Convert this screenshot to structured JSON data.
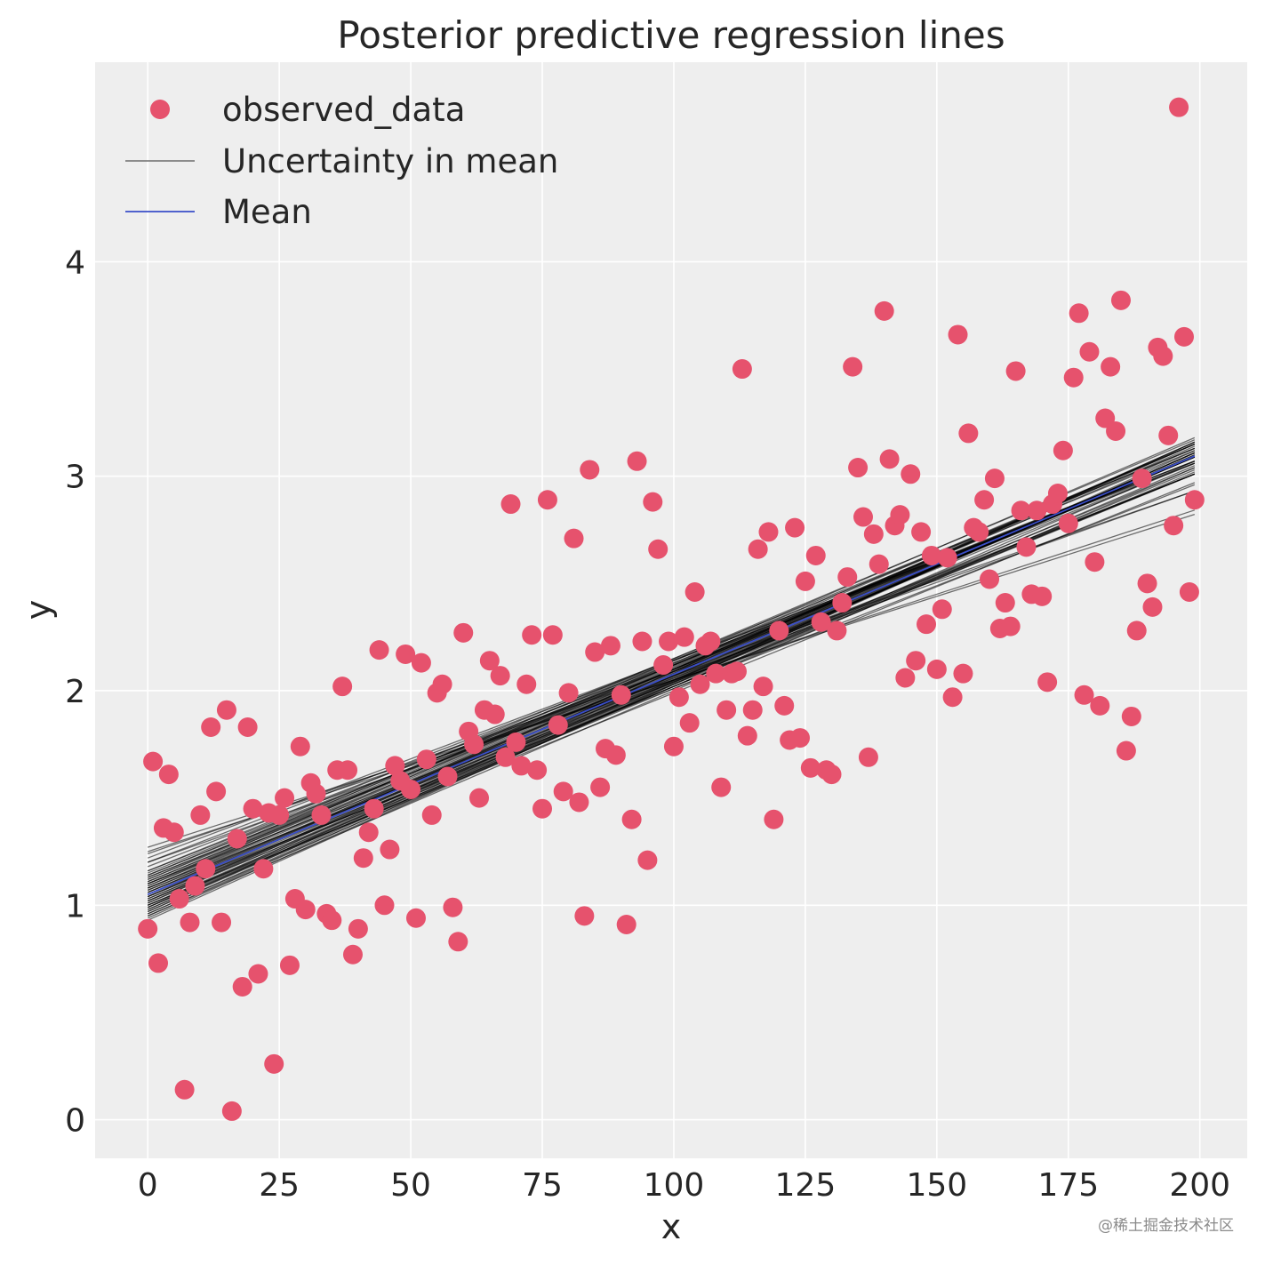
{
  "chart_data": {
    "type": "scatter",
    "title": "Posterior predictive regression lines",
    "xlabel": "x",
    "ylabel": "y",
    "xlim": [
      -10,
      209
    ],
    "ylim": [
      -0.18,
      4.93
    ],
    "xticks": [
      0,
      25,
      50,
      75,
      100,
      125,
      150,
      175,
      200
    ],
    "yticks": [
      0,
      1,
      2,
      3,
      4
    ],
    "grid": true,
    "legend_position": "top-left",
    "legend": [
      {
        "label": "observed_data",
        "kind": "marker"
      },
      {
        "label": "Uncertainty in mean",
        "kind": "line"
      },
      {
        "label": "Mean",
        "kind": "line"
      }
    ],
    "colors": {
      "background": "#eeeeee",
      "grid": "#ffffff",
      "points": "#e6526d",
      "uncertainty_lines": "#000000",
      "mean_line": "#3a4ec8",
      "text": "#262626"
    },
    "mean_line": {
      "intercept": 1.05,
      "slope": 0.01027,
      "x_range": [
        0,
        199
      ]
    },
    "uncertainty_lines": [
      [
        1.0,
        0.0105
      ],
      [
        1.02,
        0.0104
      ],
      [
        1.04,
        0.0103
      ],
      [
        1.06,
        0.0102
      ],
      [
        1.08,
        0.0101
      ],
      [
        1.1,
        0.01
      ],
      [
        1.12,
        0.0099
      ],
      [
        1.14,
        0.0098
      ],
      [
        0.98,
        0.01065
      ],
      [
        0.97,
        0.01075
      ],
      [
        0.99,
        0.0106
      ],
      [
        1.01,
        0.01045
      ],
      [
        1.03,
        0.01035
      ],
      [
        1.05,
        0.01025
      ],
      [
        1.07,
        0.01015
      ],
      [
        1.09,
        0.01005
      ],
      [
        1.11,
        0.00995
      ],
      [
        1.13,
        0.00985
      ],
      [
        1.15,
        0.00975
      ],
      [
        0.96,
        0.0108
      ],
      [
        0.95,
        0.01085
      ],
      [
        0.94,
        0.0109
      ],
      [
        1.16,
        0.0096
      ],
      [
        1.18,
        0.0095
      ],
      [
        1.2,
        0.0094
      ],
      [
        1.22,
        0.00925
      ],
      [
        1.25,
        0.008
      ],
      [
        1.27,
        0.0078
      ],
      [
        1.24,
        0.0085
      ],
      [
        1.2,
        0.0087
      ],
      [
        1.02,
        0.01
      ],
      [
        1.06,
        0.0098
      ],
      [
        1.0,
        0.0102
      ],
      [
        1.1,
        0.0096
      ],
      [
        1.04,
        0.0106
      ],
      [
        1.08,
        0.0104
      ],
      [
        0.97,
        0.011
      ],
      [
        1.12,
        0.0103
      ],
      [
        1.01,
        0.0108
      ],
      [
        0.99,
        0.0102
      ],
      [
        1.05,
        0.0105
      ],
      [
        1.07,
        0.01
      ],
      [
        1.09,
        0.0105
      ],
      [
        1.03,
        0.0101
      ],
      [
        0.98,
        0.0104
      ],
      [
        1.13,
        0.0097
      ],
      [
        1.11,
        0.0101
      ],
      [
        0.96,
        0.0106
      ],
      [
        1.0,
        0.0099
      ],
      [
        1.05,
        0.0096
      ],
      [
        1.14,
        0.01
      ],
      [
        0.95,
        0.0105
      ],
      [
        1.02,
        0.0107
      ],
      [
        1.08,
        0.0097
      ],
      [
        1.04,
        0.0099
      ],
      [
        1.06,
        0.0104
      ],
      [
        0.93,
        0.011
      ],
      [
        1.16,
        0.0099
      ],
      [
        1.1,
        0.0103
      ],
      [
        0.99,
        0.0109
      ]
    ],
    "points": [
      [
        0,
        0.89
      ],
      [
        1,
        1.67
      ],
      [
        2,
        0.73
      ],
      [
        3,
        1.36
      ],
      [
        4,
        1.61
      ],
      [
        5,
        1.34
      ],
      [
        6,
        1.03
      ],
      [
        7,
        0.14
      ],
      [
        8,
        0.92
      ],
      [
        9,
        1.09
      ],
      [
        10,
        1.42
      ],
      [
        11,
        1.17
      ],
      [
        12,
        1.83
      ],
      [
        13,
        1.53
      ],
      [
        14,
        0.92
      ],
      [
        15,
        1.91
      ],
      [
        16,
        0.04
      ],
      [
        17,
        1.31
      ],
      [
        18,
        0.62
      ],
      [
        19,
        1.83
      ],
      [
        20,
        1.45
      ],
      [
        21,
        0.68
      ],
      [
        22,
        1.17
      ],
      [
        23,
        1.43
      ],
      [
        24,
        0.26
      ],
      [
        25,
        1.42
      ],
      [
        26,
        1.5
      ],
      [
        27,
        0.72
      ],
      [
        28,
        1.03
      ],
      [
        29,
        1.74
      ],
      [
        30,
        0.98
      ],
      [
        31,
        1.57
      ],
      [
        32,
        1.52
      ],
      [
        33,
        1.42
      ],
      [
        34,
        0.96
      ],
      [
        35,
        0.93
      ],
      [
        36,
        1.63
      ],
      [
        37,
        2.02
      ],
      [
        38,
        1.63
      ],
      [
        39,
        0.77
      ],
      [
        40,
        0.89
      ],
      [
        41,
        1.22
      ],
      [
        42,
        1.34
      ],
      [
        43,
        1.45
      ],
      [
        44,
        2.19
      ],
      [
        45,
        1.0
      ],
      [
        46,
        1.26
      ],
      [
        47,
        1.65
      ],
      [
        48,
        1.58
      ],
      [
        49,
        2.17
      ],
      [
        50,
        1.54
      ],
      [
        51,
        0.94
      ],
      [
        52,
        2.13
      ],
      [
        53,
        1.68
      ],
      [
        54,
        1.42
      ],
      [
        55,
        1.99
      ],
      [
        56,
        2.03
      ],
      [
        57,
        1.6
      ],
      [
        58,
        0.99
      ],
      [
        59,
        0.83
      ],
      [
        60,
        2.27
      ],
      [
        61,
        1.81
      ],
      [
        62,
        1.75
      ],
      [
        63,
        1.5
      ],
      [
        64,
        1.91
      ],
      [
        65,
        2.14
      ],
      [
        66,
        1.89
      ],
      [
        67,
        2.07
      ],
      [
        68,
        1.69
      ],
      [
        69,
        2.87
      ],
      [
        70,
        1.76
      ],
      [
        71,
        1.65
      ],
      [
        72,
        2.03
      ],
      [
        73,
        2.26
      ],
      [
        74,
        1.63
      ],
      [
        75,
        1.45
      ],
      [
        76,
        2.89
      ],
      [
        77,
        2.26
      ],
      [
        78,
        1.84
      ],
      [
        79,
        1.53
      ],
      [
        80,
        1.99
      ],
      [
        81,
        2.71
      ],
      [
        82,
        1.48
      ],
      [
        83,
        0.95
      ],
      [
        84,
        3.03
      ],
      [
        85,
        2.18
      ],
      [
        86,
        1.55
      ],
      [
        87,
        1.73
      ],
      [
        88,
        2.21
      ],
      [
        89,
        1.7
      ],
      [
        90,
        1.98
      ],
      [
        91,
        0.91
      ],
      [
        92,
        1.4
      ],
      [
        93,
        3.07
      ],
      [
        94,
        2.23
      ],
      [
        95,
        1.21
      ],
      [
        96,
        2.88
      ],
      [
        97,
        2.66
      ],
      [
        98,
        2.12
      ],
      [
        99,
        2.23
      ],
      [
        100,
        1.74
      ],
      [
        101,
        1.97
      ],
      [
        102,
        2.25
      ],
      [
        103,
        1.85
      ],
      [
        104,
        2.46
      ],
      [
        105,
        2.03
      ],
      [
        106,
        2.21
      ],
      [
        107,
        2.23
      ],
      [
        108,
        2.08
      ],
      [
        109,
        1.55
      ],
      [
        110,
        1.91
      ],
      [
        111,
        2.08
      ],
      [
        112,
        2.09
      ],
      [
        113,
        3.5
      ],
      [
        114,
        1.79
      ],
      [
        115,
        1.91
      ],
      [
        116,
        2.66
      ],
      [
        117,
        2.02
      ],
      [
        118,
        2.74
      ],
      [
        119,
        1.4
      ],
      [
        120,
        2.28
      ],
      [
        121,
        1.93
      ],
      [
        122,
        1.77
      ],
      [
        123,
        2.76
      ],
      [
        124,
        1.78
      ],
      [
        125,
        2.51
      ],
      [
        126,
        1.64
      ],
      [
        127,
        2.63
      ],
      [
        128,
        2.32
      ],
      [
        129,
        1.63
      ],
      [
        130,
        1.61
      ],
      [
        131,
        2.28
      ],
      [
        132,
        2.41
      ],
      [
        133,
        2.53
      ],
      [
        134,
        3.51
      ],
      [
        135,
        3.04
      ],
      [
        136,
        2.81
      ],
      [
        137,
        1.69
      ],
      [
        138,
        2.73
      ],
      [
        139,
        2.59
      ],
      [
        140,
        3.77
      ],
      [
        141,
        3.08
      ],
      [
        142,
        2.77
      ],
      [
        143,
        2.82
      ],
      [
        144,
        2.06
      ],
      [
        145,
        3.01
      ],
      [
        146,
        2.14
      ],
      [
        147,
        2.74
      ],
      [
        148,
        2.31
      ],
      [
        149,
        2.63
      ],
      [
        150,
        2.1
      ],
      [
        151,
        2.38
      ],
      [
        152,
        2.62
      ],
      [
        153,
        1.97
      ],
      [
        154,
        3.66
      ],
      [
        155,
        2.08
      ],
      [
        156,
        3.2
      ],
      [
        157,
        2.76
      ],
      [
        158,
        2.74
      ],
      [
        159,
        2.89
      ],
      [
        160,
        2.52
      ],
      [
        161,
        2.99
      ],
      [
        162,
        2.29
      ],
      [
        163,
        2.41
      ],
      [
        164,
        2.3
      ],
      [
        165,
        3.49
      ],
      [
        166,
        2.84
      ],
      [
        167,
        2.67
      ],
      [
        168,
        2.45
      ],
      [
        169,
        2.84
      ],
      [
        170,
        2.44
      ],
      [
        171,
        2.04
      ],
      [
        172,
        2.87
      ],
      [
        173,
        2.92
      ],
      [
        174,
        3.12
      ],
      [
        175,
        2.78
      ],
      [
        176,
        3.46
      ],
      [
        177,
        3.76
      ],
      [
        178,
        1.98
      ],
      [
        179,
        3.58
      ],
      [
        180,
        2.6
      ],
      [
        181,
        1.93
      ],
      [
        182,
        3.27
      ],
      [
        183,
        3.51
      ],
      [
        184,
        3.21
      ],
      [
        185,
        3.82
      ],
      [
        186,
        1.72
      ],
      [
        187,
        1.88
      ],
      [
        188,
        2.28
      ],
      [
        189,
        2.99
      ],
      [
        190,
        2.5
      ],
      [
        191,
        2.39
      ],
      [
        192,
        3.6
      ],
      [
        193,
        3.56
      ],
      [
        194,
        3.19
      ],
      [
        195,
        2.77
      ],
      [
        196,
        4.72
      ],
      [
        197,
        3.65
      ],
      [
        198,
        2.46
      ],
      [
        199,
        2.89
      ]
    ]
  },
  "watermark": "@稀土掘金技术社区"
}
